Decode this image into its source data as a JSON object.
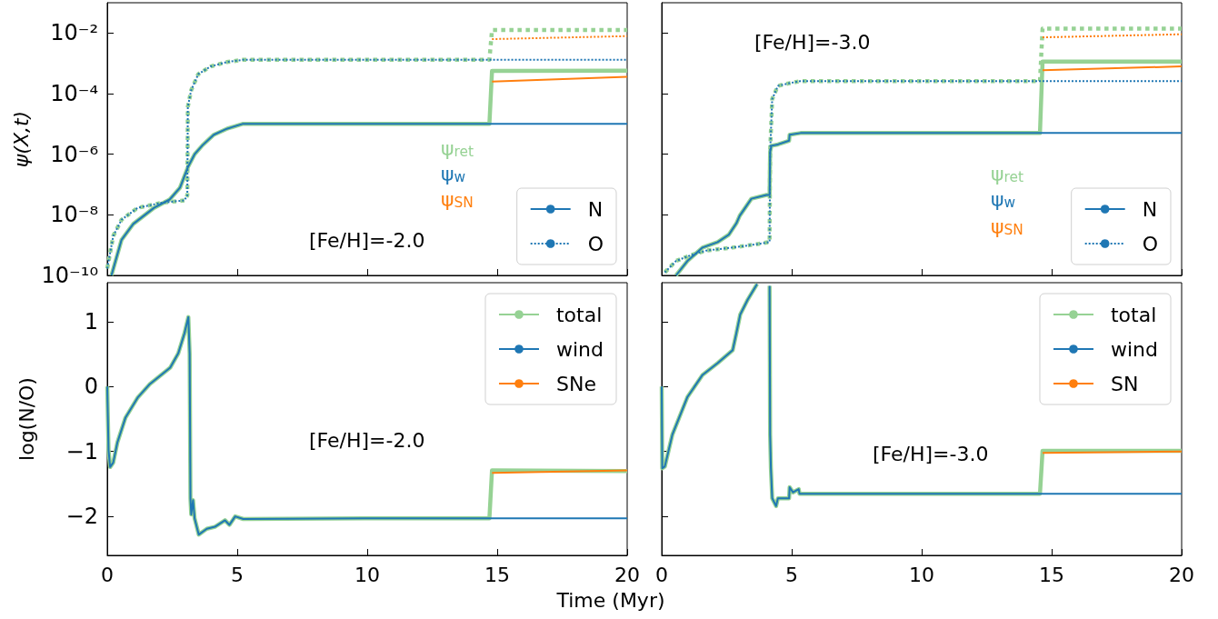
{
  "chart_data": [
    {
      "type": "line",
      "ylabel": "ψ(X,t)",
      "log": true,
      "xlim": [
        0,
        20
      ],
      "xticks": [
        0,
        5,
        10,
        15,
        20
      ],
      "ylim": [
        1e-10,
        0.1
      ],
      "yticks": [
        {
          "value": 1e-10,
          "label": "10⁻¹⁰"
        },
        {
          "value": 1e-08,
          "label": "10⁻⁸"
        },
        {
          "value": 1e-06,
          "label": "10⁻⁶"
        },
        {
          "value": 0.0001,
          "label": "10⁻⁴"
        },
        {
          "value": 0.01,
          "label": "10⁻²"
        }
      ],
      "tick_labels": "y",
      "grid": false,
      "legend": "bottom right",
      "marker": "none",
      "annotations": [
        "[Fe/H]=-2.0",
        "ψ$_{ret}$",
        "ψ$_{w}$",
        "ψ$_{SN}$"
      ],
      "series": [
        {
          "color": "#96d294",
          "line_style": "solid",
          "x": [
            0.16,
            0.55,
            1.0,
            1.8,
            2.4,
            2.8,
            3.1,
            3.36,
            3.67,
            4.1,
            4.6,
            5.2,
            14.7,
            14.8,
            20
          ],
          "values": [
            1e-10,
            1.5e-09,
            5e-09,
            1.7e-08,
            3.2e-08,
            7.9e-08,
            3.7e-07,
            1e-06,
            2e-06,
            4.4e-06,
            6.9e-06,
            1e-05,
            1e-05,
            0.00056,
            0.00057
          ]
        },
        {
          "color": "#96d294",
          "line_style": "dotted",
          "x": [
            0,
            0.23,
            0.55,
            1.17,
            2.1,
            2.97,
            3.08,
            3.1,
            3.23,
            3.5,
            3.98,
            4.6,
            5.2,
            14.7,
            14.8,
            20
          ],
          "values": [
            1.7e-10,
            2e-09,
            6.9e-09,
            1.7e-08,
            2.5e-08,
            3e-08,
            4.4e-08,
            3.7e-05,
            0.00013,
            0.00044,
            0.00079,
            0.0011,
            0.0013,
            0.0013,
            0.0126,
            0.0126
          ]
        },
        {
          "name": "N",
          "color": "#1f77b4",
          "line_style": "solid",
          "x": [
            0.16,
            0.55,
            1.0,
            1.8,
            2.4,
            2.8,
            3.1,
            3.36,
            3.67,
            4.1,
            4.6,
            5.2,
            20
          ],
          "values": [
            1e-10,
            1.5e-09,
            5e-09,
            1.7e-08,
            3.2e-08,
            7.9e-08,
            3.7e-07,
            1e-06,
            2e-06,
            4.4e-06,
            6.9e-06,
            1e-05,
            1e-05
          ]
        },
        {
          "name": "O",
          "color": "#1f77b4",
          "line_style": "dotted",
          "x": [
            0,
            0.23,
            0.55,
            1.17,
            2.1,
            2.97,
            3.08,
            3.1,
            3.23,
            3.5,
            3.98,
            4.6,
            5.2,
            20
          ],
          "values": [
            1.7e-10,
            2e-09,
            6.9e-09,
            1.7e-08,
            2.5e-08,
            3e-08,
            4.4e-08,
            3.7e-05,
            0.00013,
            0.00044,
            0.00079,
            0.0011,
            0.0013,
            0.0013
          ]
        },
        {
          "color": "#ff7f0e",
          "line_style": "solid",
          "x": [
            14.8,
            20
          ],
          "values": [
            0.00025,
            0.00036
          ]
        },
        {
          "color": "#ff7f0e",
          "line_style": "dotted",
          "x": [
            14.8,
            20
          ],
          "values": [
            0.0063,
            0.0079
          ]
        }
      ]
    },
    {
      "type": "line",
      "log": true,
      "xlim": [
        0,
        20
      ],
      "xticks": [
        0,
        5,
        10,
        15,
        20
      ],
      "ylim": [
        1e-10,
        0.1
      ],
      "yticks": [
        1e-10,
        1e-08,
        1e-06,
        0.0001,
        0.01
      ],
      "tick_labels": false,
      "grid": false,
      "legend": "bottom right",
      "marker": "none",
      "annotations": [
        "[Fe/H]=-3.0",
        "ψ$_{ret}$",
        "ψ$_{w}$",
        "ψ$_{SN}$"
      ],
      "series": [
        {
          "color": "#96d294",
          "line_style": "solid",
          "x": [
            0.55,
            0.99,
            1.57,
            2.15,
            2.58,
            2.87,
            3.0,
            3.45,
            4.03,
            4.15,
            4.17,
            4.22,
            4.47,
            4.9,
            4.92,
            5.34,
            14.55,
            14.65,
            20
          ],
          "values": [
            1e-10,
            3e-10,
            8.3e-10,
            1.26e-09,
            2.2e-09,
            5.2e-09,
            9.3e-09,
            3.4e-08,
            4.5e-08,
            4.5e-08,
            1.2e-06,
            1.9e-06,
            2.1e-06,
            2.8e-06,
            4.4e-06,
            5e-06,
            5e-06,
            0.00115,
            0.00115
          ]
        },
        {
          "color": "#96d294",
          "line_style": "dotted",
          "x": [
            0.12,
            0.55,
            1.13,
            1.71,
            2.73,
            3.74,
            4.15,
            4.17,
            4.25,
            4.47,
            4.9,
            5.34,
            14.55,
            14.65,
            20
          ],
          "values": [
            1.26e-10,
            3e-10,
            4.7e-10,
            6.6e-10,
            8.3e-10,
            1.1e-09,
            1.26e-09,
            1.2e-06,
            6.6e-05,
            0.00018,
            0.00022,
            0.00026,
            0.00026,
            0.014,
            0.014
          ]
        },
        {
          "name": "N",
          "color": "#1f77b4",
          "line_style": "solid",
          "x": [
            0.55,
            0.99,
            1.57,
            2.15,
            2.58,
            2.87,
            3.0,
            3.45,
            4.03,
            4.15,
            4.17,
            4.22,
            4.47,
            4.9,
            4.92,
            5.34,
            20
          ],
          "values": [
            1e-10,
            3e-10,
            8.3e-10,
            1.26e-09,
            2.2e-09,
            5.2e-09,
            9.3e-09,
            3.4e-08,
            4.5e-08,
            4.5e-08,
            1.2e-06,
            1.9e-06,
            2.1e-06,
            2.8e-06,
            4.4e-06,
            5e-06,
            5e-06
          ]
        },
        {
          "name": "O",
          "color": "#1f77b4",
          "line_style": "dotted",
          "x": [
            0.12,
            0.55,
            1.13,
            1.71,
            2.73,
            3.74,
            4.15,
            4.17,
            4.25,
            4.47,
            4.9,
            5.34,
            20
          ],
          "values": [
            1.26e-10,
            3e-10,
            4.7e-10,
            6.6e-10,
            8.3e-10,
            1.1e-09,
            1.26e-09,
            1.2e-06,
            6.6e-05,
            0.00018,
            0.00022,
            0.00026,
            0.00026
          ]
        },
        {
          "color": "#ff7f0e",
          "line_style": "solid",
          "x": [
            14.65,
            20
          ],
          "values": [
            0.00059,
            0.00079
          ]
        },
        {
          "color": "#ff7f0e",
          "line_style": "dotted",
          "x": [
            14.65,
            20
          ],
          "values": [
            0.0072,
            0.0091
          ]
        }
      ]
    },
    {
      "type": "line",
      "xlabel": "Time (Myr)",
      "ylabel": "log(N/O)",
      "xlim": [
        0,
        20
      ],
      "xticks": [
        0,
        5,
        10,
        15,
        20
      ],
      "ylim": [
        -2.6,
        1.6
      ],
      "yticks": [
        {
          "value": -2,
          "label": "−2"
        },
        {
          "value": -1,
          "label": "−1"
        },
        0,
        1
      ],
      "grid": false,
      "legend": "top right",
      "marker": "none",
      "annotations": [
        "[Fe/H]=-2.0"
      ],
      "series": [
        {
          "name": "total",
          "color": "#96d294",
          "line_style": "solid",
          "x": [
            0,
            0.05,
            0.11,
            0.23,
            0.39,
            0.7,
            1.17,
            1.64,
            2.42,
            2.73,
            2.97,
            3.12,
            3.17,
            3.2,
            3.23,
            3.3,
            3.36,
            3.52,
            3.83,
            4.14,
            4.53,
            4.7,
            4.92,
            5.23,
            9.9,
            14.7,
            14.8,
            20
          ],
          "values": [
            0,
            -0.98,
            -1.24,
            -1.17,
            -0.86,
            -0.48,
            -0.17,
            0.04,
            0.29,
            0.51,
            0.82,
            1.07,
            0.51,
            -1.72,
            -1.97,
            -1.75,
            -2.03,
            -2.28,
            -2.19,
            -2.16,
            -2.06,
            -2.13,
            -2.0,
            -2.04,
            -2.03,
            -2.03,
            -1.29,
            -1.3
          ]
        },
        {
          "name": "wind",
          "color": "#1f77b4",
          "line_style": "solid",
          "x": [
            0,
            0.05,
            0.11,
            0.23,
            0.39,
            0.7,
            1.17,
            1.64,
            2.42,
            2.73,
            2.97,
            3.12,
            3.17,
            3.2,
            3.23,
            3.3,
            3.36,
            3.52,
            3.83,
            4.14,
            4.53,
            4.7,
            4.92,
            5.23,
            9.9,
            20
          ],
          "values": [
            0,
            -0.98,
            -1.24,
            -1.17,
            -0.86,
            -0.48,
            -0.17,
            0.04,
            0.29,
            0.51,
            0.82,
            1.07,
            0.51,
            -1.72,
            -1.97,
            -1.75,
            -2.03,
            -2.28,
            -2.19,
            -2.16,
            -2.06,
            -2.13,
            -2.0,
            -2.04,
            -2.03,
            -2.03
          ]
        },
        {
          "name": "SNe",
          "color": "#ff7f0e",
          "line_style": "solid",
          "x": [
            14.8,
            20
          ],
          "values": [
            -1.33,
            -1.29
          ]
        }
      ]
    },
    {
      "type": "line",
      "xlim": [
        0,
        20
      ],
      "xticks": [
        0,
        5,
        10,
        15,
        20
      ],
      "ylim": [
        -2.6,
        1.6
      ],
      "yticks": [
        -2,
        -1,
        0,
        1
      ],
      "tick_labels": "x",
      "grid": false,
      "legend": "top right",
      "marker": "none",
      "annotations": [
        "[Fe/H]=-3.0"
      ],
      "series": [
        {
          "name": "total",
          "color": "#96d294",
          "line_style": "solid",
          "x": [
            0,
            0.02,
            0.12,
            0.41,
            0.99,
            1.57,
            2.15,
            2.73,
            2.87,
            3.02,
            3.31,
            3.67,
            3.9,
            4.15,
            4.17,
            4.2,
            4.25,
            4.4,
            4.47,
            4.9,
            4.92,
            5.05,
            5.27,
            5.3,
            14.55,
            14.65,
            20
          ],
          "values": [
            0,
            -1.26,
            -1.23,
            -0.74,
            -0.16,
            0.18,
            0.36,
            0.56,
            0.82,
            1.11,
            1.34,
            1.58,
            null,
            1.55,
            -0.74,
            -1.26,
            -1.72,
            -1.84,
            -1.72,
            -1.72,
            -1.55,
            -1.63,
            -1.58,
            -1.65,
            -1.65,
            -0.99,
            -0.99
          ]
        },
        {
          "name": "wind",
          "color": "#1f77b4",
          "line_style": "solid",
          "x": [
            0,
            0.02,
            0.12,
            0.41,
            0.99,
            1.57,
            2.15,
            2.73,
            2.87,
            3.02,
            3.31,
            3.67,
            3.9,
            4.15,
            4.17,
            4.2,
            4.25,
            4.4,
            4.47,
            4.9,
            4.92,
            5.05,
            5.27,
            5.3,
            20
          ],
          "values": [
            0,
            -1.26,
            -1.23,
            -0.74,
            -0.16,
            0.18,
            0.36,
            0.56,
            0.82,
            1.11,
            1.34,
            1.58,
            null,
            1.55,
            -0.74,
            -1.26,
            -1.72,
            -1.84,
            -1.72,
            -1.72,
            -1.55,
            -1.63,
            -1.58,
            -1.65,
            -1.65
          ]
        },
        {
          "name": "SN",
          "color": "#ff7f0e",
          "line_style": "solid",
          "x": [
            14.65,
            20
          ],
          "values": [
            -1.02,
            -1.0
          ]
        }
      ]
    }
  ]
}
